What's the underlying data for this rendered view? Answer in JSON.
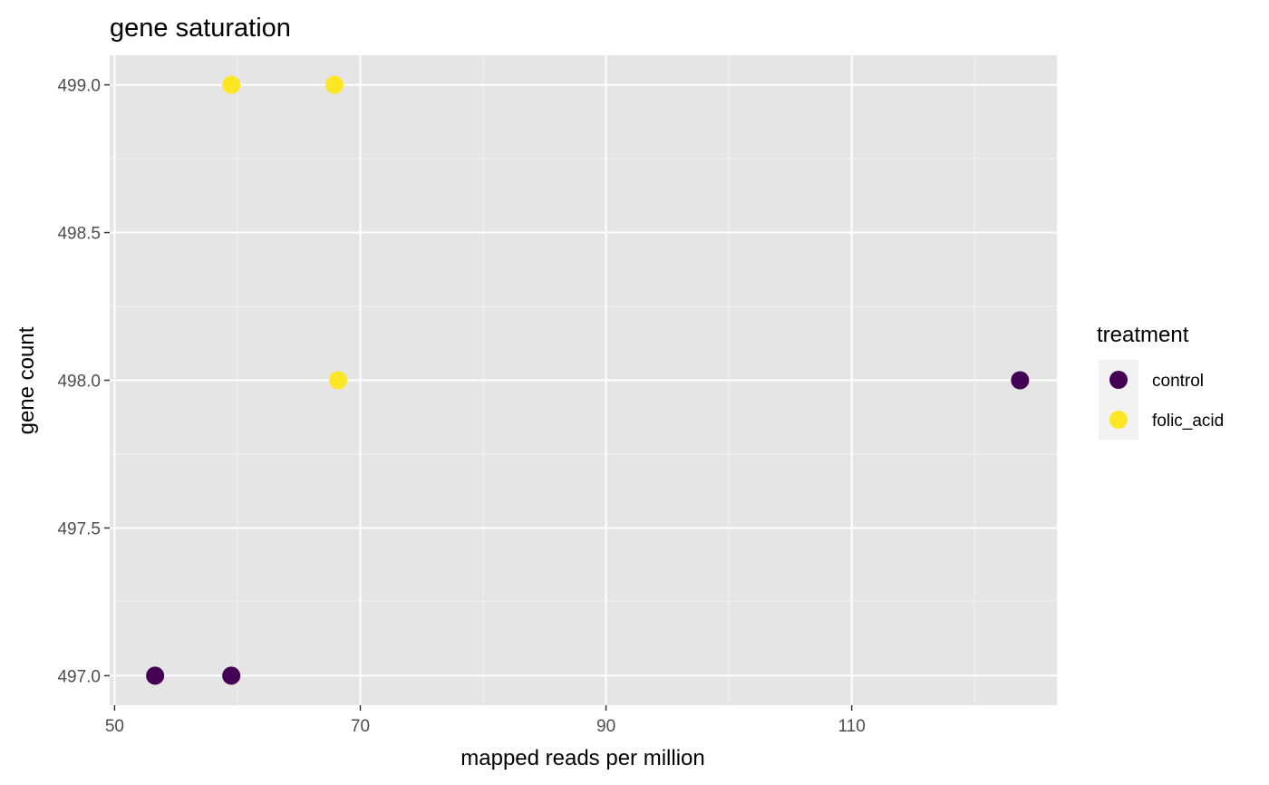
{
  "chart_data": {
    "type": "scatter",
    "title": "gene saturation",
    "xlabel": "mapped reads per million",
    "ylabel": "gene count",
    "xlim": [
      49.6,
      126.7
    ],
    "ylim": [
      496.9,
      499.1
    ],
    "x_ticks": [
      50,
      70,
      90,
      110
    ],
    "x_tick_labels": [
      "50",
      "70",
      "90",
      "110"
    ],
    "y_ticks": [
      497.0,
      497.5,
      498.0,
      498.5,
      499.0
    ],
    "y_tick_labels": [
      "497.0",
      "497.5",
      "498.0",
      "498.5",
      "499.0"
    ],
    "grid": true,
    "legend": {
      "title": "treatment",
      "position": "right",
      "entries": [
        {
          "label": "control",
          "color": "#440154"
        },
        {
          "label": "folic_acid",
          "color": "#FDE725"
        }
      ]
    },
    "series": [
      {
        "name": "control",
        "color": "#440154",
        "points": [
          [
            53.3,
            497.0
          ],
          [
            59.5,
            497.0
          ],
          [
            123.7,
            498.0
          ]
        ]
      },
      {
        "name": "folic_acid",
        "color": "#FDE725",
        "points": [
          [
            59.5,
            499.0
          ],
          [
            67.9,
            499.0
          ],
          [
            68.2,
            498.0
          ]
        ]
      }
    ]
  }
}
